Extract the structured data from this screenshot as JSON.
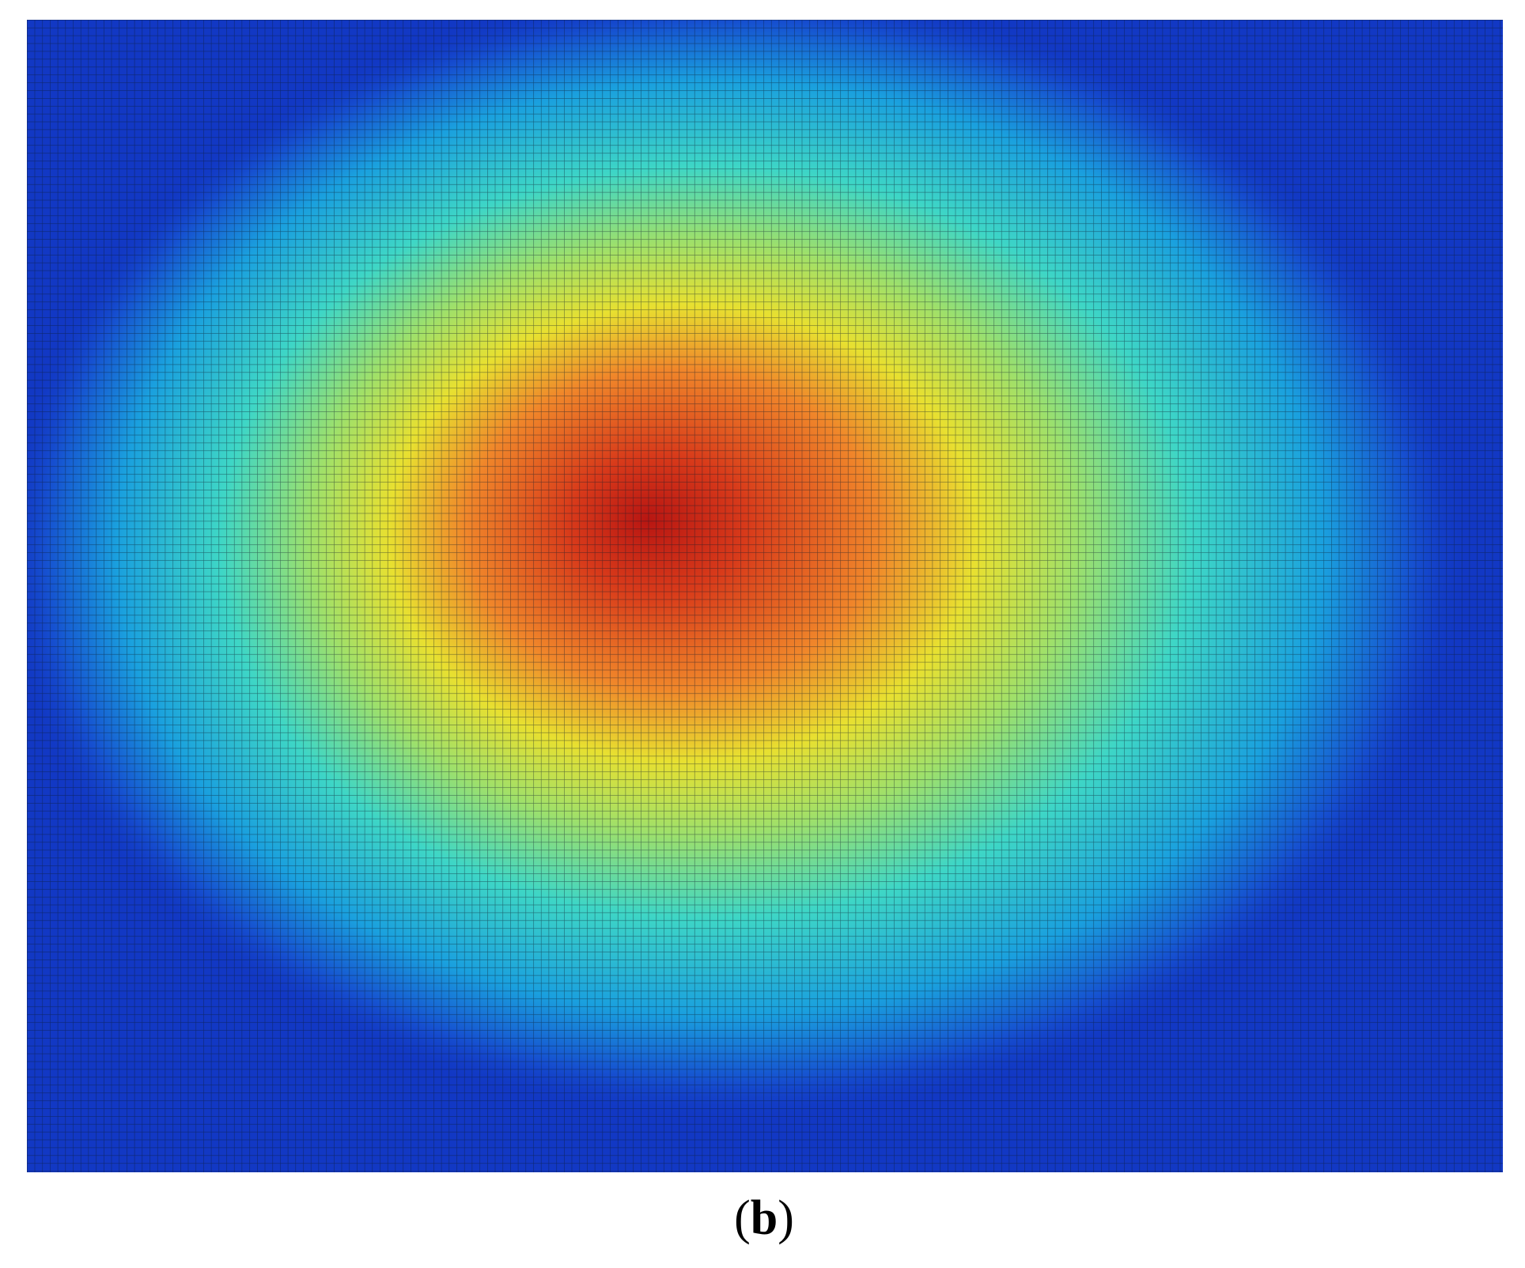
{
  "figure": {
    "caption": [
      "(",
      "b",
      ")"
    ]
  }
}
